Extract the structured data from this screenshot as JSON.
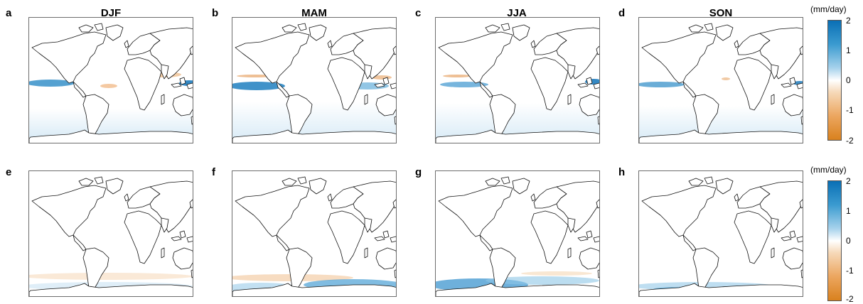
{
  "row1": {
    "panels": [
      {
        "letter": "a",
        "title": "DJF"
      },
      {
        "letter": "b",
        "title": "MAM"
      },
      {
        "letter": "c",
        "title": "JJA"
      },
      {
        "letter": "d",
        "title": "SON"
      }
    ]
  },
  "row2": {
    "panels": [
      {
        "letter": "e"
      },
      {
        "letter": "f"
      },
      {
        "letter": "g"
      },
      {
        "letter": "h"
      }
    ]
  },
  "colorbar": {
    "unit": "(mm/day)",
    "ticks": [
      "2",
      "1",
      "0",
      "-1",
      "-2"
    ],
    "colors": {
      "positive": "#0a6fb5",
      "zero": "#ffffff",
      "negative": "#d9811e"
    }
  }
}
